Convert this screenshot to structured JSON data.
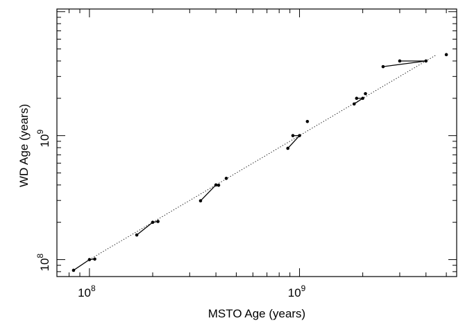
{
  "chart_data": {
    "type": "scatter",
    "title": "",
    "xlabel": "MSTO Age (years)",
    "ylabel": "WD Age (years)",
    "x_scale": "log",
    "y_scale": "log",
    "xlim": [
      70000000.0,
      5600000000.0
    ],
    "ylim": [
      73000000.0,
      10500000000.0
    ],
    "x_ticks": [
      {
        "value": 100000000.0,
        "base": "10",
        "exp": "8"
      },
      {
        "value": 1000000000.0,
        "base": "10",
        "exp": "9"
      }
    ],
    "y_ticks": [
      {
        "value": 100000000.0,
        "base": "10",
        "exp": "8"
      },
      {
        "value": 1000000000.0,
        "base": "10",
        "exp": "9"
      }
    ],
    "grid": false,
    "legend": "none",
    "reference_line": {
      "style": "dotted",
      "description": "one-to-one",
      "x": [
        100000000.0,
        4500000000.0
      ],
      "y": [
        100000000.0,
        4500000000.0
      ]
    },
    "groups": [
      {
        "segments": [
          [
            [
              84000000.0,
              82000000.0
            ],
            [
              100000000.0,
              100000000.0
            ]
          ],
          [
            [
              100000000.0,
              100000000.0
            ],
            [
              106000000.0,
              101000000.0
            ]
          ]
        ],
        "points": [
          [
            84000000.0,
            82000000.0
          ],
          [
            100000000.0,
            100000000.0
          ],
          [
            106000000.0,
            101000000.0
          ]
        ]
      },
      {
        "segments": [
          [
            [
              168000000.0,
              158000000.0
            ],
            [
              200000000.0,
              200000000.0
            ]
          ],
          [
            [
              200000000.0,
              200000000.0
            ],
            [
              212000000.0,
              203000000.0
            ]
          ]
        ],
        "points": [
          [
            168000000.0,
            158000000.0
          ],
          [
            200000000.0,
            200000000.0
          ],
          [
            212000000.0,
            203000000.0
          ]
        ]
      },
      {
        "segments": [
          [
            [
              338000000.0,
              298000000.0
            ],
            [
              400000000.0,
              400000000.0
            ]
          ],
          [
            [
              400000000.0,
              400000000.0
            ],
            [
              412000000.0,
              398000000.0
            ]
          ]
        ],
        "points": [
          [
            338000000.0,
            298000000.0
          ],
          [
            400000000.0,
            400000000.0
          ],
          [
            412000000.0,
            398000000.0
          ],
          [
            448000000.0,
            452000000.0
          ]
        ]
      },
      {
        "segments": [
          [
            [
              880000000.0,
              790000000.0
            ],
            [
              1000000000.0,
              1000000000.0
            ]
          ],
          [
            [
              1000000000.0,
              1000000000.0
            ],
            [
              930000000.0,
              1000000000.0
            ]
          ]
        ],
        "points": [
          [
            880000000.0,
            790000000.0
          ],
          [
            930000000.0,
            1000000000.0
          ],
          [
            1000000000.0,
            1000000000.0
          ],
          [
            1090000000.0,
            1300000000.0
          ]
        ]
      },
      {
        "segments": [
          [
            [
              1820000000.0,
              1800000000.0
            ],
            [
              2000000000.0,
              2000000000.0
            ]
          ],
          [
            [
              2000000000.0,
              2000000000.0
            ],
            [
              1870000000.0,
              2000000000.0
            ]
          ]
        ],
        "points": [
          [
            1820000000.0,
            1800000000.0
          ],
          [
            1870000000.0,
            2000000000.0
          ],
          [
            2000000000.0,
            2000000000.0
          ],
          [
            2060000000.0,
            2180000000.0
          ]
        ]
      },
      {
        "segments": [
          [
            [
              2500000000.0,
              3600000000.0
            ],
            [
              4000000000.0,
              4000000000.0
            ]
          ],
          [
            [
              4000000000.0,
              4000000000.0
            ],
            [
              3000000000.0,
              4000000000.0
            ]
          ]
        ],
        "points": [
          [
            2500000000.0,
            3600000000.0
          ],
          [
            3000000000.0,
            4000000000.0
          ],
          [
            4000000000.0,
            4000000000.0
          ],
          [
            5000000000.0,
            4500000000.0
          ]
        ]
      }
    ]
  }
}
